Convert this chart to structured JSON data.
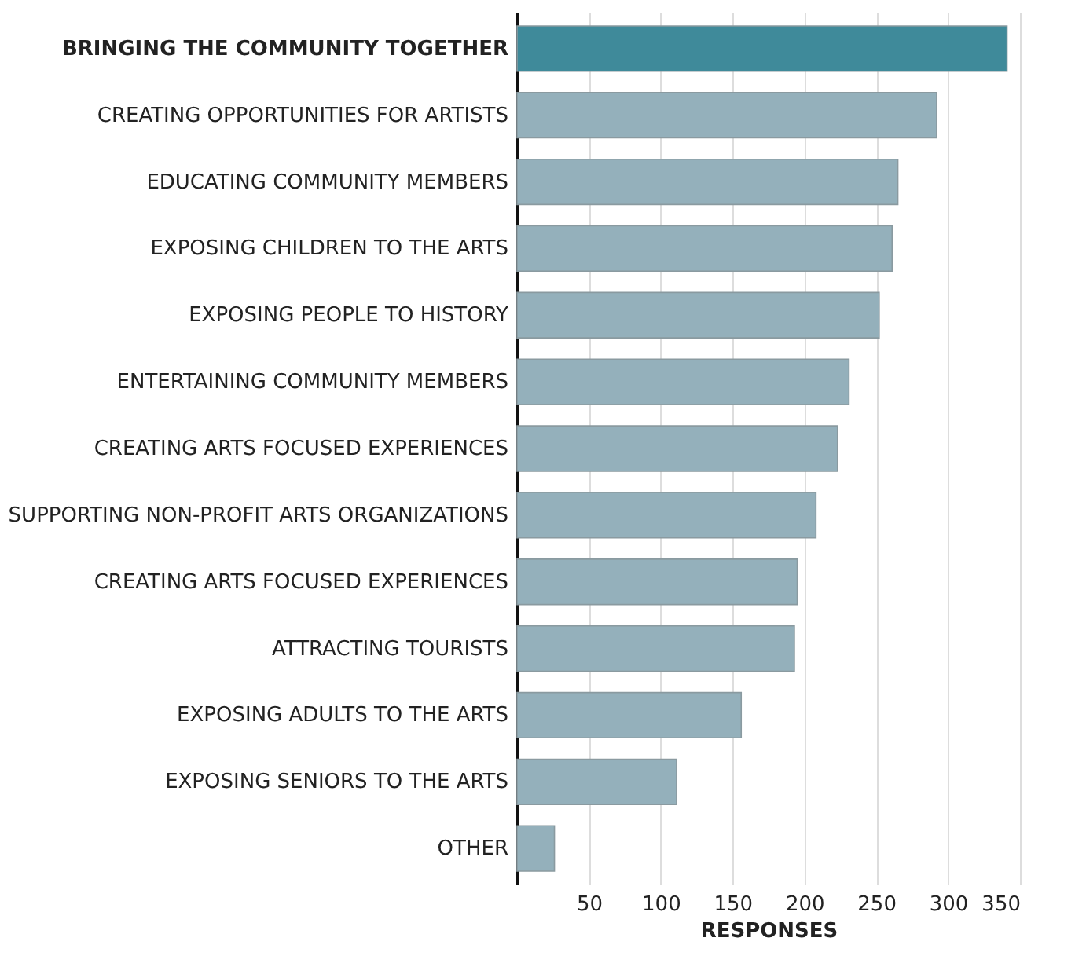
{
  "chart_data": {
    "type": "bar",
    "orientation": "horizontal",
    "xlabel": "RESPONSES",
    "categories": [
      "BRINGING THE COMMUNITY TOGETHER",
      "CREATING OPPORTUNITIES FOR ARTISTS",
      "EDUCATING COMMUNITY MEMBERS",
      "EXPOSING CHILDREN TO THE ARTS",
      "EXPOSING PEOPLE TO HISTORY",
      "ENTERTAINING COMMUNITY MEMBERS",
      "CREATING ARTS FOCUSED EXPERIENCES",
      "SUPPORTING NON-PROFIT ARTS ORGANIZATIONS",
      "CREATING ARTS FOCUSED EXPERIENCES",
      "ATTRACTING TOURISTS",
      "EXPOSING ADULTS TO THE ARTS",
      "EXPOSING SENIORS TO THE ARTS",
      "OTHER"
    ],
    "values": [
      341,
      292,
      265,
      261,
      252,
      231,
      223,
      208,
      195,
      193,
      156,
      111,
      26
    ],
    "colors": [
      "#3f8a9a",
      "#94b0bb",
      "#94b0bb",
      "#94b0bb",
      "#94b0bb",
      "#94b0bb",
      "#94b0bb",
      "#94b0bb",
      "#94b0bb",
      "#94b0bb",
      "#94b0bb",
      "#94b0bb",
      "#94b0bb"
    ],
    "xlim": [
      0,
      350
    ],
    "xticks": [
      50,
      100,
      150,
      200,
      250,
      300,
      350
    ],
    "grid": "x"
  }
}
